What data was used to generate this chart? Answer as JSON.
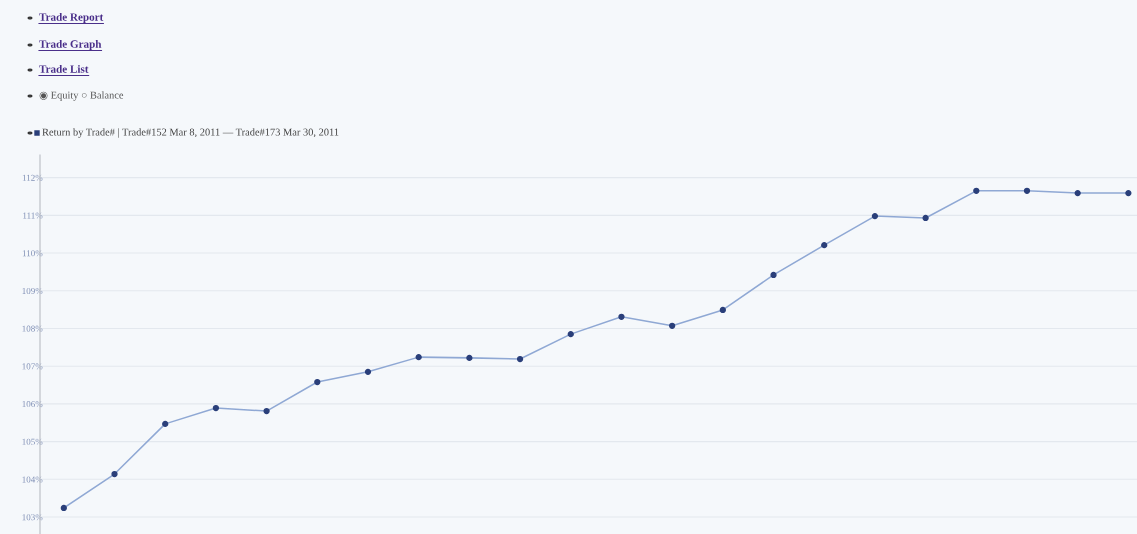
{
  "chart_data": {
    "type": "line",
    "title": "Return by Trade# | Trade#152 Mar 8, 2011 — Trade#173 Mar 30, 2011",
    "annotations": [
      "Trade Report",
      "Trade Graph",
      "Trade List",
      "◉ Equity ○ Balance"
    ],
    "categories": [
      null,
      null,
      null,
      null,
      null,
      null,
      null,
      null,
      null,
      null,
      null,
      null,
      null,
      null,
      null,
      null,
      null,
      null,
      null,
      null,
      null,
      null
    ],
    "series": [
      {
        "color": "#8fa8d4",
        "values": [
          103.24,
          104.14,
          105.47,
          105.89,
          105.81,
          106.58,
          106.85,
          107.24,
          107.22,
          107.19,
          107.85,
          108.31,
          108.07,
          108.49,
          109.42,
          110.21,
          110.98,
          110.93,
          111.65,
          111.65,
          111.59,
          111.59
        ]
      }
    ],
    "ylim": [
      102.55,
      112.6
    ],
    "yticks": [
      {
        "value": 103,
        "label": "103%"
      },
      {
        "value": 104,
        "label": "104%"
      },
      {
        "value": 105,
        "label": "105%"
      },
      {
        "value": 106,
        "label": "106%"
      },
      {
        "value": 107,
        "label": "107%"
      },
      {
        "value": 108,
        "label": "108%"
      },
      {
        "value": 109,
        "label": "109%"
      },
      {
        "value": 110,
        "label": "110%"
      },
      {
        "value": 111,
        "label": "111%"
      },
      {
        "value": 112,
        "label": "112%"
      }
    ],
    "grid": "y",
    "marker": "circle",
    "line_style": "solid",
    "tick_labels": "y"
  }
}
